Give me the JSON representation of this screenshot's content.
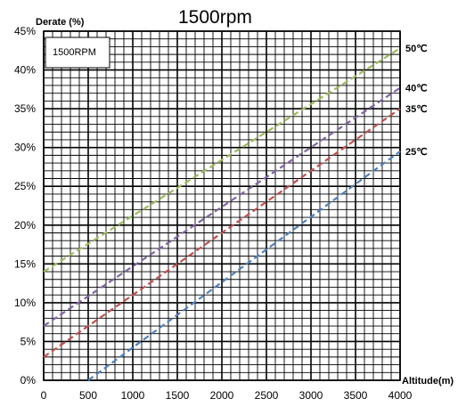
{
  "chart_data": {
    "type": "line",
    "title": "1500rpm",
    "inset_label": "1500RPM",
    "xlabel": "Altitude(m)",
    "ylabel": "Derate (%)",
    "x_ticks": [
      0,
      500,
      1000,
      1500,
      2000,
      2500,
      3000,
      3500,
      4000
    ],
    "y_ticks": [
      "0%",
      "5%",
      "10%",
      "15%",
      "20%",
      "25%",
      "30%",
      "35%",
      "40%",
      "45%"
    ],
    "xlim": [
      0,
      4000
    ],
    "ylim": [
      0,
      45
    ],
    "grid": true,
    "series": [
      {
        "name": "50℃",
        "color": "#9bbb59",
        "x": [
          0,
          4000
        ],
        "y": [
          14,
          42.8
        ]
      },
      {
        "name": "40℃",
        "color": "#8064a2",
        "x": [
          0,
          4000
        ],
        "y": [
          7,
          37.7
        ]
      },
      {
        "name": "35℃",
        "color": "#c0504d",
        "x": [
          0,
          4000
        ],
        "y": [
          3,
          35
        ]
      },
      {
        "name": "25℃",
        "color": "#4f81bd",
        "x": [
          500,
          4000
        ],
        "y": [
          0,
          29.5
        ]
      }
    ]
  }
}
